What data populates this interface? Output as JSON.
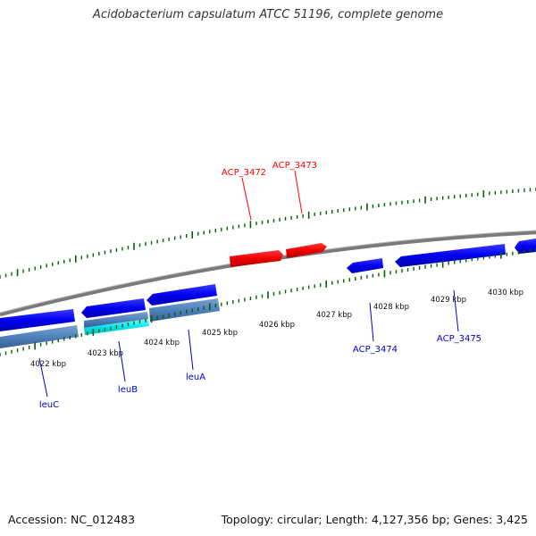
{
  "title": "Acidobacterium capsulatum ATCC 51196, complete genome",
  "footer": {
    "accession": "Accession: NC_012483",
    "topology": "Topology: circular; Length: 4,127,356 bp; Genes: 3,425"
  },
  "colors": {
    "forward_gene": "#ff0000",
    "reverse_gene": "#0000ff",
    "rna_or_cds_steel": "#4f81bd",
    "highlight_gene": "#00e5ee",
    "backbone": "#808080",
    "ticks": "#006400"
  },
  "ticks": [
    {
      "label": "4022 kbp"
    },
    {
      "label": "4023 kbp"
    },
    {
      "label": "4024 kbp"
    },
    {
      "label": "4025 kbp"
    },
    {
      "label": "4026 kbp"
    },
    {
      "label": "4027 kbp"
    },
    {
      "label": "4028 kbp"
    },
    {
      "label": "4029 kbp"
    },
    {
      "label": "4030 kbp"
    }
  ],
  "gene_labels": [
    {
      "name": "ACP_3472",
      "strand": "forward"
    },
    {
      "name": "ACP_3473",
      "strand": "forward"
    },
    {
      "name": "ACP_3474",
      "strand": "reverse"
    },
    {
      "name": "ACP_3475",
      "strand": "reverse"
    },
    {
      "name": "leuC",
      "strand": "reverse"
    },
    {
      "name": "leuB",
      "strand": "reverse"
    },
    {
      "name": "leuA",
      "strand": "reverse"
    }
  ]
}
